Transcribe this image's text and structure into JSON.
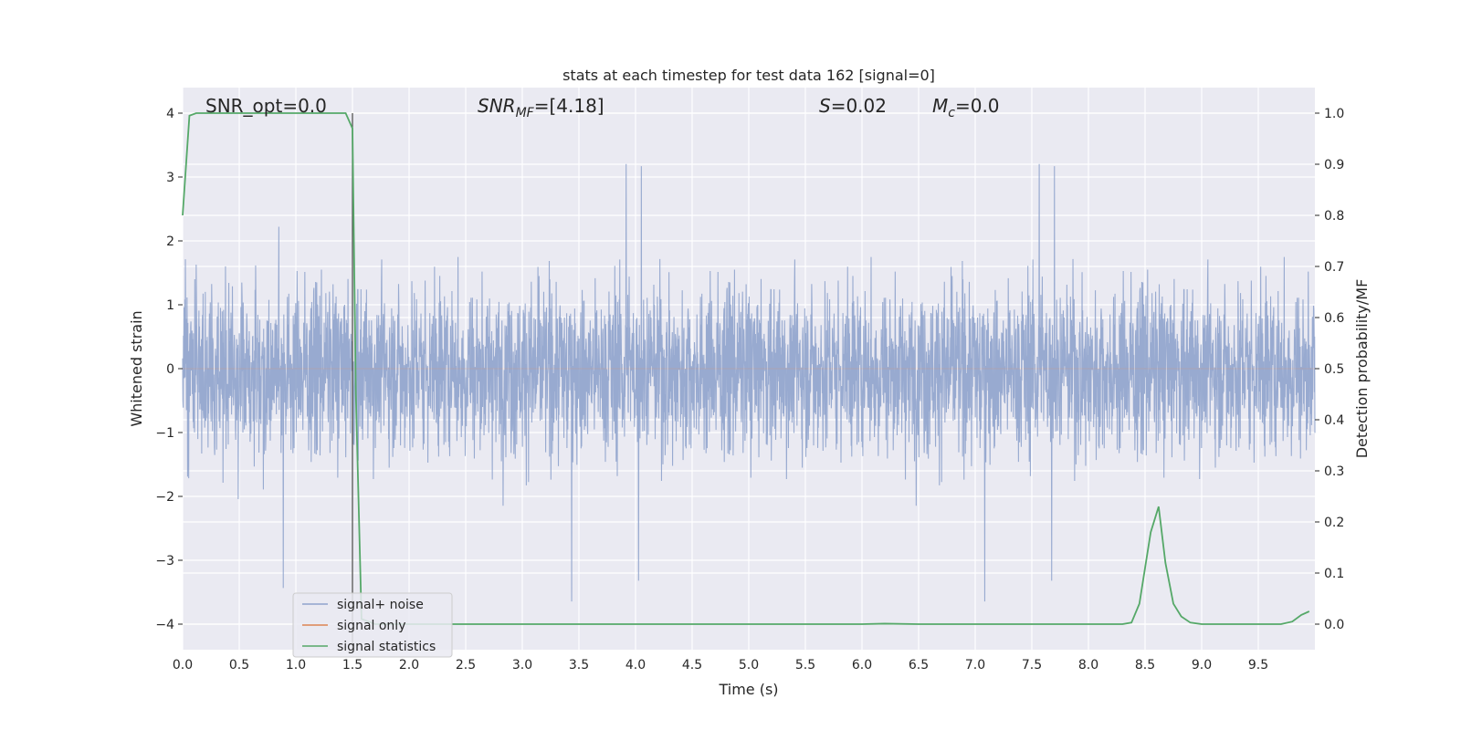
{
  "chart_data": {
    "type": "line",
    "title": "stats at each timestep for test data 162 [signal=0]",
    "xlabel": "Time (s)",
    "ylabel": "Whitened strain",
    "y2label": "Detection probability/MF",
    "xlim": [
      0.0,
      10.0
    ],
    "ylim": [
      -4.4,
      4.4
    ],
    "y2lim": [
      -0.05,
      1.05
    ],
    "xticks": [
      "0.0",
      "0.5",
      "1.0",
      "1.5",
      "2.0",
      "2.5",
      "3.0",
      "3.5",
      "4.0",
      "4.5",
      "5.0",
      "5.5",
      "6.0",
      "6.5",
      "7.0",
      "7.5",
      "8.0",
      "8.5",
      "9.0",
      "9.5"
    ],
    "yticks": [
      "4",
      "3",
      "2",
      "1",
      "0",
      "−1",
      "−2",
      "−3",
      "−4"
    ],
    "y2ticks": [
      "1.0",
      "0.9",
      "0.8",
      "0.7",
      "0.6",
      "0.5",
      "0.4",
      "0.3",
      "0.2",
      "0.1",
      "0.0"
    ],
    "grid": true,
    "background": "#eaeaf2",
    "legend_position": "lower-left",
    "annotations": {
      "snr_opt": "SNR_opt=0.0",
      "snr_mf_sym": "SNR",
      "snr_mf_sub": "MF",
      "snr_mf_val": "=[4.18]",
      "s_sym": "S",
      "s_val": "=0.02",
      "mc_sym": "M",
      "mc_sub": "c",
      "mc_val": "=0.0"
    },
    "marker_line_x": 1.5,
    "noise_envelope": {
      "typical_peak": 2.2,
      "max_peak": 4.0,
      "min_trough": -3.85
    },
    "series": [
      {
        "name": "signal+ noise",
        "color": "#8fa3cc",
        "axis": "left",
        "kind": "whitened-noise-trace",
        "samples": 4096
      },
      {
        "name": "signal only",
        "color": "#dd8452",
        "axis": "left",
        "kind": "flat",
        "values": [
          0
        ]
      },
      {
        "name": "signal statistics",
        "color": "#55a868",
        "axis": "right",
        "x": [
          0.0,
          0.06,
          0.12,
          0.3,
          0.6,
          0.9,
          1.2,
          1.44,
          1.5,
          1.53,
          1.58,
          1.7,
          2.0,
          3.0,
          4.0,
          5.0,
          5.5,
          6.0,
          6.2,
          6.5,
          7.0,
          7.5,
          8.0,
          8.3,
          8.38,
          8.45,
          8.55,
          8.62,
          8.68,
          8.75,
          8.82,
          8.9,
          9.0,
          9.2,
          9.5,
          9.7,
          9.8,
          9.88,
          9.95
        ],
        "values": [
          0.8,
          0.995,
          1.0,
          1.0,
          1.0,
          1.0,
          1.0,
          1.0,
          0.97,
          0.45,
          0.01,
          0.0,
          0.0,
          0.0,
          0.0,
          0.0,
          0.0,
          0.0,
          0.001,
          0.0,
          0.0,
          0.0,
          0.0,
          0.0,
          0.003,
          0.04,
          0.18,
          0.23,
          0.12,
          0.04,
          0.015,
          0.003,
          0.0,
          0.0,
          0.0,
          0.0,
          0.005,
          0.018,
          0.025
        ]
      }
    ]
  }
}
